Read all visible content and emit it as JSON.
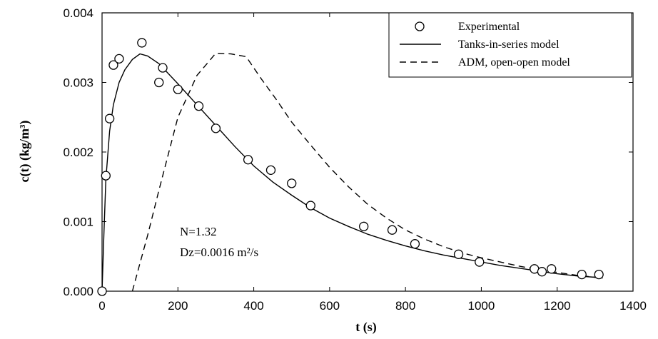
{
  "chart_data": {
    "type": "scatter",
    "xlabel": "t (s)",
    "ylabel": "c(t) (kg/m³)",
    "xlim": [
      0,
      1400
    ],
    "ylim": [
      0,
      0.004
    ],
    "x_ticks": [
      "0",
      "200",
      "400",
      "600",
      "800",
      "1000",
      "1200",
      "1400"
    ],
    "y_ticks": [
      "0.000",
      "0.001",
      "0.002",
      "0.003",
      "0.004"
    ],
    "grid": false,
    "legend_position": "top-right",
    "series": [
      {
        "name": "Experimental",
        "kind": "markers",
        "points": [
          [
            0,
            0.0
          ],
          [
            10,
            0.00166
          ],
          [
            20,
            0.00248
          ],
          [
            30,
            0.00325
          ],
          [
            45,
            0.00334
          ],
          [
            105,
            0.00357
          ],
          [
            150,
            0.003
          ],
          [
            160,
            0.00321
          ],
          [
            200,
            0.0029
          ],
          [
            255,
            0.00266
          ],
          [
            300,
            0.00234
          ],
          [
            385,
            0.00189
          ],
          [
            445,
            0.00174
          ],
          [
            500,
            0.00155
          ],
          [
            550,
            0.00123
          ],
          [
            690,
            0.00093
          ],
          [
            765,
            0.00088
          ],
          [
            825,
            0.00068
          ],
          [
            940,
            0.00053
          ],
          [
            995,
            0.00042
          ],
          [
            1140,
            0.00032
          ],
          [
            1160,
            0.00028
          ],
          [
            1185,
            0.00032
          ],
          [
            1265,
            0.00024
          ],
          [
            1310,
            0.00024
          ]
        ]
      },
      {
        "name": "Tanks-in-series model",
        "kind": "solid-line",
        "points": [
          [
            0,
            0.0
          ],
          [
            5,
            0.00085
          ],
          [
            10,
            0.0016
          ],
          [
            20,
            0.0023
          ],
          [
            30,
            0.00268
          ],
          [
            45,
            0.003
          ],
          [
            60,
            0.00318
          ],
          [
            80,
            0.00333
          ],
          [
            100,
            0.00341
          ],
          [
            120,
            0.00338
          ],
          [
            150,
            0.00327
          ],
          [
            200,
            0.00298
          ],
          [
            250,
            0.00268
          ],
          [
            300,
            0.00238
          ],
          [
            350,
            0.00208
          ],
          [
            400,
            0.0018
          ],
          [
            450,
            0.00157
          ],
          [
            500,
            0.00138
          ],
          [
            550,
            0.0012
          ],
          [
            600,
            0.00105
          ],
          [
            650,
            0.00093
          ],
          [
            700,
            0.00082
          ],
          [
            750,
            0.00073
          ],
          [
            800,
            0.00065
          ],
          [
            850,
            0.00058
          ],
          [
            900,
            0.00052
          ],
          [
            950,
            0.00047
          ],
          [
            1000,
            0.00042
          ],
          [
            1050,
            0.00037
          ],
          [
            1100,
            0.00033
          ],
          [
            1150,
            0.00029
          ],
          [
            1200,
            0.00025
          ],
          [
            1250,
            0.00022
          ],
          [
            1300,
            0.0002
          ],
          [
            1320,
            0.00019
          ]
        ]
      },
      {
        "name": "ADM, open-open model",
        "kind": "dashed-line",
        "points": [
          [
            80,
            0.0
          ],
          [
            100,
            0.0004
          ],
          [
            120,
            0.0008
          ],
          [
            150,
            0.00145
          ],
          [
            200,
            0.0025
          ],
          [
            250,
            0.0031
          ],
          [
            300,
            0.00342
          ],
          [
            340,
            0.00341
          ],
          [
            380,
            0.00337
          ],
          [
            420,
            0.00305
          ],
          [
            460,
            0.00275
          ],
          [
            500,
            0.00243
          ],
          [
            550,
            0.0021
          ],
          [
            600,
            0.00178
          ],
          [
            650,
            0.0015
          ],
          [
            700,
            0.00125
          ],
          [
            750,
            0.00105
          ],
          [
            800,
            0.00088
          ],
          [
            850,
            0.00075
          ],
          [
            900,
            0.00064
          ],
          [
            950,
            0.00055
          ],
          [
            1000,
            0.00048
          ],
          [
            1050,
            0.00042
          ],
          [
            1100,
            0.00036
          ],
          [
            1150,
            0.00031
          ],
          [
            1200,
            0.00027
          ],
          [
            1250,
            0.00023
          ],
          [
            1300,
            0.0002
          ],
          [
            1320,
            0.00019
          ]
        ]
      }
    ],
    "annotation_n": "N=1.32",
    "annotation_dz": "Dz=0.0016 m²/s"
  }
}
